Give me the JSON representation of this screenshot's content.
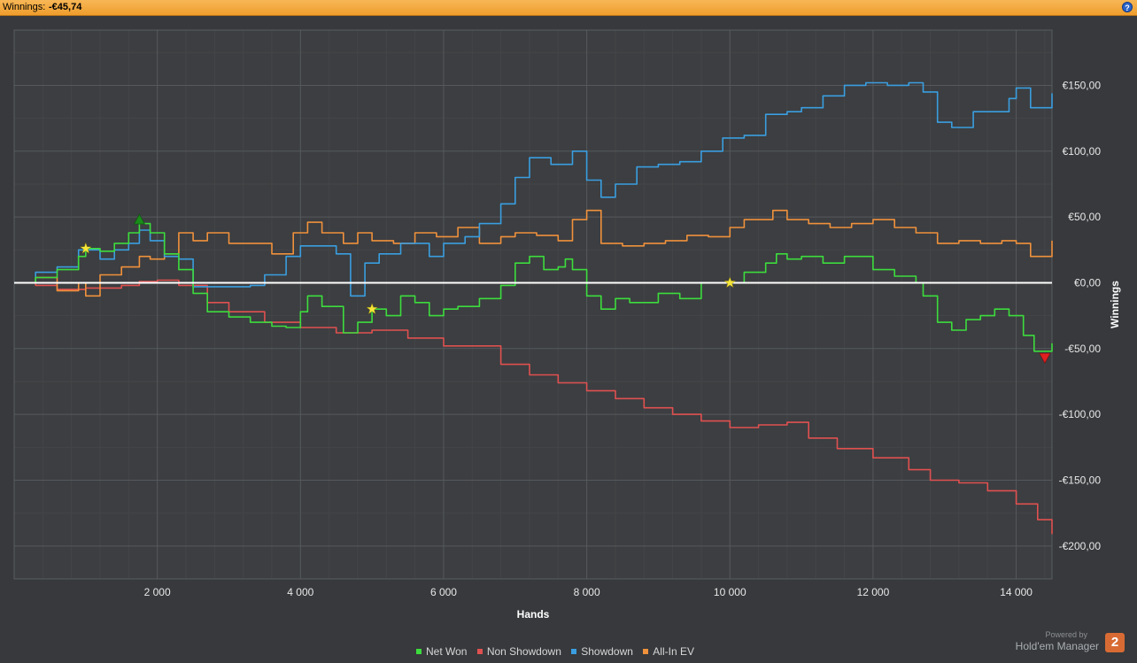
{
  "header": {
    "label": "Winnings:",
    "value": "-€45,74",
    "help_icon": "help-icon"
  },
  "chart_data": {
    "type": "line",
    "xlabel": "Hands",
    "ylabel": "Winnings",
    "xlim": [
      0,
      14500
    ],
    "ylim": [
      -225,
      192
    ],
    "x_ticks": [
      2000,
      4000,
      6000,
      8000,
      10000,
      12000,
      14000
    ],
    "x_tick_labels": [
      "2 000",
      "4 000",
      "6 000",
      "8 000",
      "10 000",
      "12 000",
      "14 000"
    ],
    "y_ticks": [
      150,
      100,
      50,
      0,
      -50,
      -100,
      -150,
      -200
    ],
    "y_tick_labels": [
      "€150,00",
      "€100,00",
      "€50,00",
      "€0,00",
      "-€50,00",
      "-€100,00",
      "-€150,00",
      "-€200,00"
    ],
    "grid": true,
    "legend_position": "bottom",
    "series": [
      {
        "name": "Net Won",
        "color": "#3ddc3d",
        "points": [
          [
            0,
            0
          ],
          [
            300,
            4
          ],
          [
            600,
            10
          ],
          [
            900,
            20
          ],
          [
            1000,
            26
          ],
          [
            1200,
            24
          ],
          [
            1400,
            30
          ],
          [
            1600,
            38
          ],
          [
            1750,
            45
          ],
          [
            1900,
            38
          ],
          [
            2100,
            22
          ],
          [
            2300,
            10
          ],
          [
            2500,
            -8
          ],
          [
            2700,
            -22
          ],
          [
            3000,
            -26
          ],
          [
            3300,
            -30
          ],
          [
            3600,
            -33
          ],
          [
            3800,
            -34
          ],
          [
            4000,
            -22
          ],
          [
            4100,
            -10
          ],
          [
            4300,
            -18
          ],
          [
            4600,
            -38
          ],
          [
            4800,
            -30
          ],
          [
            5000,
            -20
          ],
          [
            5200,
            -25
          ],
          [
            5400,
            -10
          ],
          [
            5600,
            -15
          ],
          [
            5800,
            -25
          ],
          [
            6000,
            -20
          ],
          [
            6200,
            -18
          ],
          [
            6500,
            -12
          ],
          [
            6800,
            -2
          ],
          [
            7000,
            15
          ],
          [
            7200,
            20
          ],
          [
            7400,
            10
          ],
          [
            7600,
            12
          ],
          [
            7700,
            18
          ],
          [
            7800,
            10
          ],
          [
            8000,
            -10
          ],
          [
            8200,
            -20
          ],
          [
            8400,
            -12
          ],
          [
            8600,
            -15
          ],
          [
            9000,
            -8
          ],
          [
            9300,
            -12
          ],
          [
            9600,
            0
          ],
          [
            9900,
            0
          ],
          [
            10000,
            0
          ],
          [
            10200,
            8
          ],
          [
            10500,
            15
          ],
          [
            10650,
            22
          ],
          [
            10800,
            18
          ],
          [
            11000,
            20
          ],
          [
            11300,
            15
          ],
          [
            11600,
            20
          ],
          [
            12000,
            10
          ],
          [
            12300,
            5
          ],
          [
            12600,
            0
          ],
          [
            12700,
            -10
          ],
          [
            12900,
            -30
          ],
          [
            13100,
            -36
          ],
          [
            13300,
            -28
          ],
          [
            13500,
            -25
          ],
          [
            13700,
            -20
          ],
          [
            13900,
            -25
          ],
          [
            14100,
            -40
          ],
          [
            14250,
            -52
          ],
          [
            14500,
            -46
          ]
        ]
      },
      {
        "name": "Non Showdown",
        "color": "#e05050",
        "points": [
          [
            0,
            0
          ],
          [
            300,
            -2
          ],
          [
            600,
            -5
          ],
          [
            1000,
            -4
          ],
          [
            1500,
            -2
          ],
          [
            1750,
            1
          ],
          [
            2000,
            2
          ],
          [
            2300,
            -2
          ],
          [
            2700,
            -15
          ],
          [
            3000,
            -22
          ],
          [
            3500,
            -30
          ],
          [
            4000,
            -34
          ],
          [
            4500,
            -38
          ],
          [
            5000,
            -36
          ],
          [
            5500,
            -42
          ],
          [
            6000,
            -48
          ],
          [
            6300,
            -48
          ],
          [
            6800,
            -62
          ],
          [
            7200,
            -70
          ],
          [
            7600,
            -76
          ],
          [
            8000,
            -82
          ],
          [
            8400,
            -88
          ],
          [
            8800,
            -95
          ],
          [
            9200,
            -100
          ],
          [
            9600,
            -105
          ],
          [
            10000,
            -110
          ],
          [
            10400,
            -108
          ],
          [
            10800,
            -106
          ],
          [
            11100,
            -118
          ],
          [
            11500,
            -126
          ],
          [
            12000,
            -133
          ],
          [
            12500,
            -142
          ],
          [
            12800,
            -150
          ],
          [
            13200,
            -152
          ],
          [
            13600,
            -158
          ],
          [
            14000,
            -168
          ],
          [
            14300,
            -180
          ],
          [
            14500,
            -191
          ]
        ]
      },
      {
        "name": "Showdown",
        "color": "#3a9ee0",
        "points": [
          [
            0,
            0
          ],
          [
            300,
            8
          ],
          [
            600,
            12
          ],
          [
            900,
            25
          ],
          [
            1100,
            25
          ],
          [
            1200,
            18
          ],
          [
            1400,
            25
          ],
          [
            1600,
            30
          ],
          [
            1750,
            40
          ],
          [
            1900,
            32
          ],
          [
            2100,
            20
          ],
          [
            2300,
            18
          ],
          [
            2500,
            -3
          ],
          [
            2700,
            -3
          ],
          [
            3000,
            -3
          ],
          [
            3300,
            -2
          ],
          [
            3500,
            6
          ],
          [
            3800,
            20
          ],
          [
            4000,
            28
          ],
          [
            4200,
            28
          ],
          [
            4500,
            22
          ],
          [
            4700,
            -10
          ],
          [
            4900,
            15
          ],
          [
            5100,
            22
          ],
          [
            5400,
            30
          ],
          [
            5600,
            30
          ],
          [
            5800,
            20
          ],
          [
            6000,
            30
          ],
          [
            6300,
            35
          ],
          [
            6500,
            45
          ],
          [
            6800,
            60
          ],
          [
            7000,
            80
          ],
          [
            7200,
            95
          ],
          [
            7500,
            90
          ],
          [
            7800,
            100
          ],
          [
            8000,
            78
          ],
          [
            8200,
            65
          ],
          [
            8400,
            75
          ],
          [
            8700,
            88
          ],
          [
            9000,
            90
          ],
          [
            9300,
            92
          ],
          [
            9600,
            100
          ],
          [
            9900,
            110
          ],
          [
            10200,
            112
          ],
          [
            10500,
            128
          ],
          [
            10800,
            130
          ],
          [
            11000,
            133
          ],
          [
            11300,
            142
          ],
          [
            11600,
            150
          ],
          [
            11900,
            152
          ],
          [
            12200,
            150
          ],
          [
            12500,
            152
          ],
          [
            12700,
            145
          ],
          [
            12900,
            122
          ],
          [
            13100,
            118
          ],
          [
            13400,
            130
          ],
          [
            13700,
            130
          ],
          [
            13900,
            140
          ],
          [
            14000,
            148
          ],
          [
            14200,
            133
          ],
          [
            14500,
            144
          ]
        ]
      },
      {
        "name": "All-In EV",
        "color": "#f0913c",
        "points": [
          [
            0,
            0
          ],
          [
            300,
            4
          ],
          [
            600,
            -6
          ],
          [
            900,
            0
          ],
          [
            1000,
            -10
          ],
          [
            1200,
            6
          ],
          [
            1500,
            12
          ],
          [
            1750,
            20
          ],
          [
            1900,
            18
          ],
          [
            2100,
            22
          ],
          [
            2300,
            38
          ],
          [
            2500,
            32
          ],
          [
            2700,
            38
          ],
          [
            3000,
            30
          ],
          [
            3300,
            30
          ],
          [
            3600,
            22
          ],
          [
            3900,
            38
          ],
          [
            4100,
            46
          ],
          [
            4300,
            38
          ],
          [
            4600,
            30
          ],
          [
            4800,
            38
          ],
          [
            5000,
            32
          ],
          [
            5300,
            30
          ],
          [
            5600,
            38
          ],
          [
            5900,
            35
          ],
          [
            6200,
            42
          ],
          [
            6500,
            30
          ],
          [
            6800,
            35
          ],
          [
            7000,
            38
          ],
          [
            7300,
            36
          ],
          [
            7600,
            32
          ],
          [
            7800,
            48
          ],
          [
            8000,
            55
          ],
          [
            8200,
            30
          ],
          [
            8500,
            28
          ],
          [
            8800,
            30
          ],
          [
            9100,
            32
          ],
          [
            9400,
            36
          ],
          [
            9700,
            35
          ],
          [
            10000,
            42
          ],
          [
            10200,
            48
          ],
          [
            10600,
            55
          ],
          [
            10800,
            48
          ],
          [
            11100,
            45
          ],
          [
            11400,
            42
          ],
          [
            11700,
            45
          ],
          [
            12000,
            48
          ],
          [
            12300,
            42
          ],
          [
            12600,
            38
          ],
          [
            12900,
            30
          ],
          [
            13200,
            32
          ],
          [
            13500,
            30
          ],
          [
            13800,
            32
          ],
          [
            14000,
            30
          ],
          [
            14200,
            20
          ],
          [
            14500,
            32
          ]
        ]
      }
    ],
    "markers": [
      {
        "shape": "triangle-up",
        "color": "#1a8c1a",
        "x": 1750,
        "y": 48
      },
      {
        "shape": "star",
        "color": "#f5e63a",
        "x": 1000,
        "y": 26
      },
      {
        "shape": "star",
        "color": "#f5e63a",
        "x": 5000,
        "y": -20
      },
      {
        "shape": "star",
        "color": "#f5e63a",
        "x": 10000,
        "y": 0
      },
      {
        "shape": "triangle-down",
        "color": "#e02020",
        "x": 14400,
        "y": -57
      }
    ],
    "legend": [
      "Net Won",
      "Non Showdown",
      "Showdown",
      "All-In EV"
    ]
  },
  "footer": {
    "powered_by": "Powered by",
    "product": "Hold'em Manager",
    "logo_text": "2"
  }
}
